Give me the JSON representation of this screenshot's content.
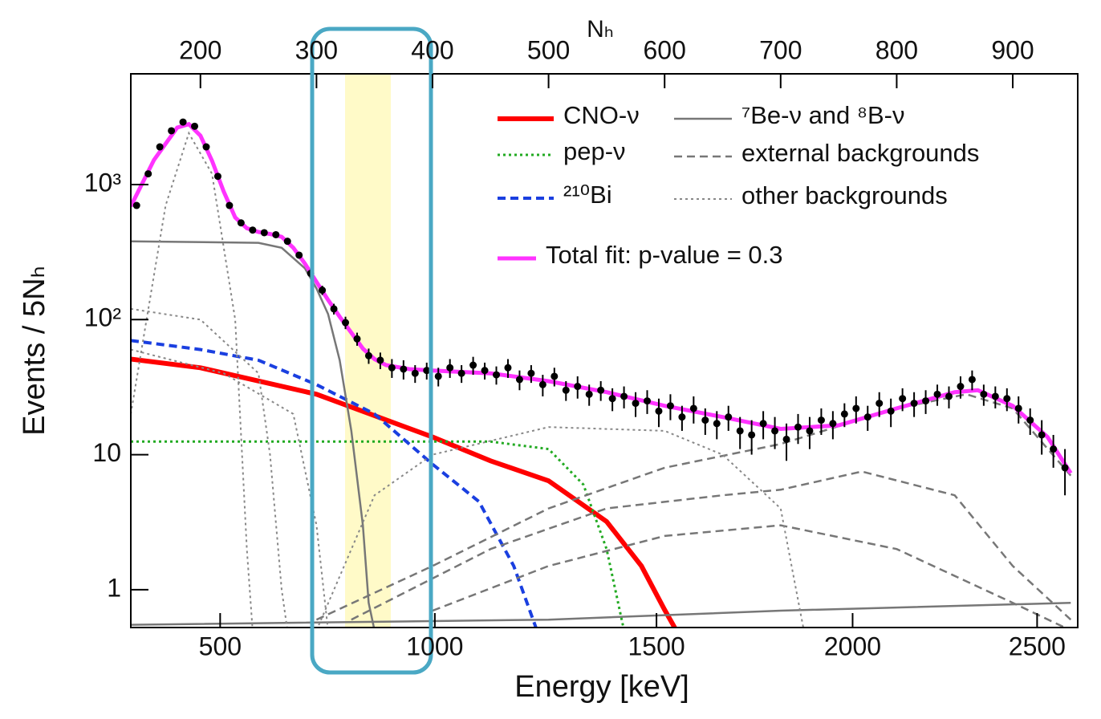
{
  "chart_data": {
    "type": "line",
    "x_label": "Energy [keV]",
    "x2_label": "Nₕ",
    "y_label": "Events / 5Nₕ",
    "log_y": true,
    "xlim": [
      140,
      956
    ],
    "ylim": [
      0.525,
      6600
    ],
    "x2ticks": [
      200,
      300,
      400,
      500,
      600,
      700,
      800,
      900
    ],
    "xticks": [
      {
        "value": 217,
        "label": "500"
      },
      {
        "value": 402,
        "label": "1000"
      },
      {
        "value": 593,
        "label": "1500"
      },
      {
        "value": 762,
        "label": "2000"
      },
      {
        "value": 921,
        "label": "2500"
      }
    ],
    "yticks": [
      1,
      10,
      {
        "value": 100,
        "label": "10²"
      },
      {
        "value": 1000,
        "label": "10³"
      }
    ],
    "data": {
      "color": "#000000",
      "x": [
        145,
        155,
        165,
        175,
        185,
        195,
        205,
        215,
        225,
        235,
        245,
        255,
        265,
        275,
        285,
        295,
        305,
        315,
        325,
        335,
        345,
        355,
        365,
        375,
        385,
        395,
        405,
        415,
        425,
        435,
        445,
        455,
        465,
        475,
        485,
        495,
        505,
        515,
        525,
        535,
        545,
        555,
        565,
        575,
        585,
        595,
        605,
        615,
        625,
        635,
        645,
        655,
        665,
        675,
        685,
        695,
        705,
        715,
        725,
        735,
        745,
        755,
        765,
        775,
        785,
        795,
        805,
        815,
        825,
        835,
        845,
        855,
        865,
        875,
        885,
        895,
        905,
        915,
        925,
        935,
        945
      ],
      "values": [
        700,
        1200,
        1900,
        2500,
        2900,
        2700,
        1900,
        1150,
        700,
        520,
        460,
        440,
        425,
        380,
        300,
        220,
        165,
        120,
        95,
        72,
        54,
        50,
        44,
        43,
        40,
        42,
        38,
        44,
        40,
        46,
        42,
        39,
        44,
        36,
        40,
        33,
        38,
        30,
        32,
        28,
        30,
        26,
        27,
        24,
        25,
        21,
        23,
        19,
        22,
        18,
        17,
        19,
        15,
        14,
        17,
        15,
        13,
        16,
        15,
        18,
        17,
        20,
        22,
        19,
        24,
        21,
        26,
        24,
        25,
        28,
        27,
        32,
        36,
        28,
        27,
        26,
        22,
        18,
        14,
        11,
        8
      ],
      "errors": [
        26,
        35,
        44,
        50,
        54,
        52,
        44,
        34,
        26,
        23,
        21,
        21,
        21,
        19,
        17,
        15,
        13,
        11,
        10,
        8,
        7,
        7,
        7,
        7,
        6,
        6,
        6,
        7,
        6,
        7,
        6,
        6,
        7,
        6,
        6,
        6,
        6,
        5,
        6,
        5,
        5,
        5,
        5,
        5,
        5,
        5,
        5,
        4,
        5,
        4,
        4,
        4,
        4,
        4,
        4,
        4,
        4,
        4,
        4,
        4,
        4,
        4,
        5,
        4,
        5,
        5,
        5,
        5,
        5,
        5,
        5,
        6,
        6,
        5,
        5,
        5,
        5,
        4,
        4,
        3,
        3
      ]
    },
    "series": [
      {
        "name": "CNO-ν",
        "color": "#ff0000",
        "style": "solid",
        "width": 6,
        "curves": [
          {
            "x": [
              140,
              200,
              300,
              400,
              450,
              500,
              550,
              580,
              600,
              610
            ],
            "values": [
              51,
              44,
              28,
              13.5,
              9,
              6.4,
              3.2,
              1.5,
              0.71,
              0.5
            ]
          }
        ]
      },
      {
        "name": "pep-ν",
        "color": "#22aa22",
        "style": "dotted",
        "width": 3,
        "curves": [
          {
            "x": [
              140,
              300,
              450,
              500,
              530,
              550,
              565
            ],
            "values": [
              12.5,
              12.5,
              12.5,
              11,
              6,
              2,
              0.5
            ]
          }
        ]
      },
      {
        "name": "²¹⁰Bi",
        "color": "#1a3fe0",
        "style": "dashed",
        "width": 4,
        "curves": [
          {
            "x": [
              140,
              200,
              250,
              300,
              350,
              400,
              440,
              470,
              490
            ],
            "values": [
              70,
              60,
              50,
              33,
              20,
              8.5,
              4.5,
              1.5,
              0.5
            ]
          }
        ]
      },
      {
        "name": "⁷Be-ν and ⁸B-ν",
        "color": "#777777",
        "style": "solid",
        "width": 2.5,
        "curves": [
          {
            "x": [
              140,
              250,
              270,
              290,
              300,
              310,
              320,
              330,
              340,
              345,
              350
            ],
            "values": [
              380,
              370,
              340,
              240,
              170,
              110,
              50,
              15,
              3,
              0.8,
              0.5
            ]
          },
          {
            "x": [
              140,
              500,
              700,
              950
            ],
            "values": [
              0.55,
              0.6,
              0.7,
              0.8
            ]
          }
        ]
      },
      {
        "name": "external backgrounds",
        "color": "#777777",
        "style": "dashed",
        "width": 2.5,
        "curves": [
          {
            "x": [
              300,
              400,
              500,
              600,
              700,
              800,
              860,
              900,
              950
            ],
            "values": [
              0.6,
              1.5,
              4,
              8,
              12,
              22,
              28,
              22,
              7
            ]
          },
          {
            "x": [
              330,
              450,
              550,
              650,
              700,
              770,
              850,
              900,
              950
            ],
            "values": [
              0.6,
              2,
              4,
              5,
              5.5,
              7.5,
              5,
              1.5,
              0.6
            ]
          },
          {
            "x": [
              400,
              500,
              600,
              700,
              800,
              900,
              950
            ],
            "values": [
              0.7,
              1.5,
              2.5,
              3,
              2,
              0.8,
              0.5
            ]
          }
        ]
      },
      {
        "name": "other backgrounds",
        "color": "#888888",
        "style": "dotted",
        "width": 2,
        "curves": [
          {
            "x": [
              140,
              170,
              190,
              210,
              230,
              240,
              245
            ],
            "values": [
              20,
              700,
              2400,
              1200,
              100,
              2,
              0.5
            ]
          },
          {
            "x": [
              140,
              200,
              250,
              260,
              270,
              275
            ],
            "values": [
              120,
              100,
              40,
              10,
              1,
              0.5
            ]
          },
          {
            "x": [
              140,
              220,
              280,
              300,
              310
            ],
            "values": [
              60,
              40,
              20,
              3,
              0.5
            ]
          },
          {
            "x": [
              300,
              350,
              400,
              500,
              600,
              650,
              700,
              720
            ],
            "values": [
              0.5,
              5,
              10,
              16,
              15,
              10,
              4,
              0.5
            ]
          }
        ]
      },
      {
        "name": "Total fit: p-value = 0.3",
        "color": "#ff33ff",
        "style": "solid",
        "width": 5,
        "curves": [
          {
            "x": [
              140,
              160,
              180,
              190,
              200,
              210,
              220,
              230,
              240,
              250,
              260,
              270,
              280,
              290,
              300,
              310,
              320,
              330,
              340,
              350,
              360,
              380,
              400,
              450,
              500,
              550,
              600,
              650,
              700,
              750,
              800,
              850,
              870,
              900,
              930,
              950
            ],
            "values": [
              690,
              1520,
              2640,
              2800,
              2300,
              1500,
              890,
              570,
              475,
              445,
              430,
              410,
              340,
              260,
              190,
              140,
              105,
              80,
              61,
              51,
              46,
              43,
              42,
              40,
              35,
              29,
              23,
              19,
              15.5,
              16.5,
              22,
              29,
              30,
              23,
              13.5,
              7.3
            ]
          }
        ]
      }
    ]
  }
}
